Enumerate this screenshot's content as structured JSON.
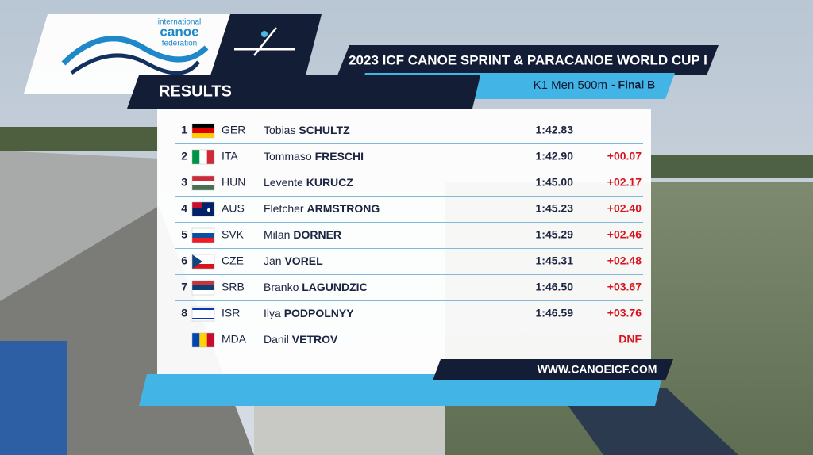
{
  "logo": {
    "line1": "international",
    "line2": "canoe",
    "line3": "federation"
  },
  "header": {
    "title": "2023 ICF CANOE SPRINT & PARACANOE WORLD CUP I",
    "event": "K1 Men 500m",
    "phase": "- Final B",
    "section": "RESULTS"
  },
  "results": [
    {
      "rank": "1",
      "country": "GER",
      "first": "Tobias",
      "last": "SCHULTZ",
      "time": "1:42.83"
    },
    {
      "rank": "2",
      "country": "ITA",
      "first": "Tommaso",
      "last": "FRESCHI",
      "time": "1:42.90",
      "gap": "+00.07"
    },
    {
      "rank": "3",
      "country": "HUN",
      "first": "Levente",
      "last": "KURUCZ",
      "time": "1:45.00",
      "gap": "+02.17"
    },
    {
      "rank": "4",
      "country": "AUS",
      "first": "Fletcher",
      "last": "ARMSTRONG",
      "time": "1:45.23",
      "gap": "+02.40"
    },
    {
      "rank": "5",
      "country": "SVK",
      "first": "Milan",
      "last": "DORNER",
      "time": "1:45.29",
      "gap": "+02.46"
    },
    {
      "rank": "6",
      "country": "CZE",
      "first": "Jan",
      "last": "VOREL",
      "time": "1:45.31",
      "gap": "+02.48"
    },
    {
      "rank": "7",
      "country": "SRB",
      "first": "Branko",
      "last": "LAGUNDZIC",
      "time": "1:46.50",
      "gap": "+03.67"
    },
    {
      "rank": "8",
      "country": "ISR",
      "first": "Ilya",
      "last": "PODPOLNYY",
      "time": "1:46.59",
      "gap": "+03.76"
    },
    {
      "country": "MDA",
      "first": "Danil",
      "last": "VETROV",
      "gap": "DNF"
    }
  ],
  "footer": {
    "website": "WWW.CANOEICF.COM"
  }
}
